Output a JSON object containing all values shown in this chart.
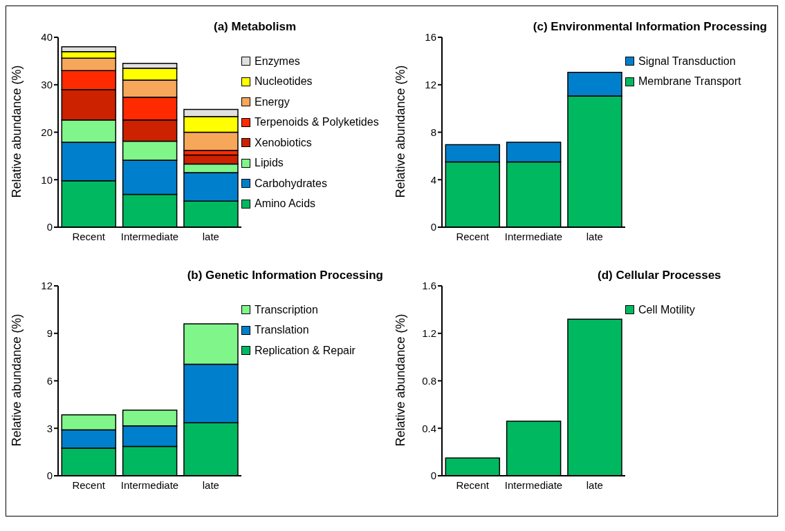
{
  "chart_data": [
    {
      "type": "bar",
      "title": "(a) Metabolism",
      "ylabel": "Relative abundance (%)",
      "categories": [
        "Recent",
        "Intermediate",
        "late"
      ],
      "stacked": true,
      "legend": "right",
      "ylim": [
        0,
        40
      ],
      "yticks": [
        0,
        10,
        20,
        30,
        40
      ],
      "series": [
        {
          "name": "Amino Acids",
          "color": "#00b860",
          "values": [
            9.8,
            6.9,
            5.5
          ]
        },
        {
          "name": "Carbohydrates",
          "color": "#0080cc",
          "values": [
            8.1,
            7.2,
            6.0
          ]
        },
        {
          "name": "Lipids",
          "color": "#80f58a",
          "values": [
            4.7,
            4.0,
            1.8
          ]
        },
        {
          "name": "Xenobiotics",
          "color": "#cc2200",
          "values": [
            6.4,
            4.5,
            1.9
          ]
        },
        {
          "name": "Terpenoids & Polyketides",
          "color": "#ff2a00",
          "values": [
            4.0,
            4.8,
            1.0
          ]
        },
        {
          "name": "Energy",
          "color": "#f6a75a",
          "values": [
            2.6,
            3.6,
            3.8
          ]
        },
        {
          "name": "Nucleotides",
          "color": "#ffff00",
          "values": [
            1.4,
            2.5,
            3.3
          ]
        },
        {
          "name": "Enzymes",
          "color": "#e0e0e0",
          "values": [
            1.0,
            1.0,
            1.5
          ]
        }
      ]
    },
    {
      "type": "bar",
      "title": "(c) Environmental Information Processing",
      "ylabel": "Relative abundance (%)",
      "categories": [
        "Recent",
        "Intermediate",
        "late"
      ],
      "stacked": true,
      "legend": "right",
      "ylim": [
        0,
        16
      ],
      "yticks": [
        0,
        4,
        8,
        12,
        16
      ],
      "series": [
        {
          "name": "Membrane Transport",
          "color": "#00b860",
          "values": [
            5.5,
            5.5,
            11.05
          ]
        },
        {
          "name": "Signal Transduction",
          "color": "#0080cc",
          "values": [
            1.45,
            1.65,
            2.0
          ]
        }
      ]
    },
    {
      "type": "bar",
      "title": "(b) Genetic Information Processing",
      "ylabel": "Relative abundance (%)",
      "categories": [
        "Recent",
        "Intermediate",
        "late"
      ],
      "stacked": true,
      "legend": "right",
      "ylim": [
        0,
        12
      ],
      "yticks": [
        0,
        3,
        6,
        9,
        12
      ],
      "series": [
        {
          "name": "Replication & Repair",
          "color": "#00b860",
          "values": [
            1.75,
            1.85,
            3.35
          ]
        },
        {
          "name": "Translation",
          "color": "#0080cc",
          "values": [
            1.15,
            1.3,
            3.7
          ]
        },
        {
          "name": "Transcription",
          "color": "#80f58a",
          "values": [
            0.95,
            1.0,
            2.55
          ]
        }
      ]
    },
    {
      "type": "bar",
      "title": "(d) Cellular Processes",
      "ylabel": "Relative abundance (%)",
      "categories": [
        "Recent",
        "Intermediate",
        "late"
      ],
      "legend": "right",
      "ylim": [
        0,
        1.6
      ],
      "yticks": [
        0,
        0.4,
        0.8,
        1.2,
        1.6
      ],
      "series": [
        {
          "name": "Cell Motility",
          "color": "#00b860",
          "values": [
            0.15,
            0.46,
            1.32
          ]
        }
      ]
    }
  ]
}
